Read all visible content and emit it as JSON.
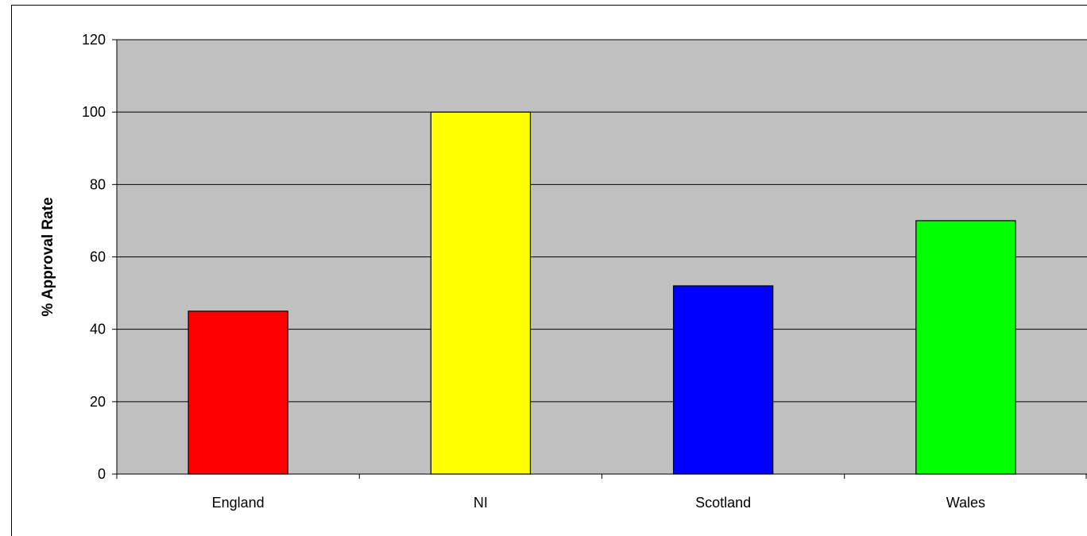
{
  "chart_data": {
    "type": "bar",
    "title": "",
    "xlabel": "",
    "ylabel": "% Approval Rate",
    "categories": [
      "England",
      "NI",
      "Scotland",
      "Wales"
    ],
    "values": [
      45,
      100,
      52,
      70
    ],
    "bar_colors": [
      "#ff0000",
      "#ffff00",
      "#0000ff",
      "#00ff00"
    ],
    "ylim": [
      0,
      120
    ],
    "yticks": [
      0,
      20,
      40,
      60,
      80,
      100,
      120
    ],
    "grid": true,
    "legend": "none",
    "plot_background": "#c0c0c0"
  }
}
